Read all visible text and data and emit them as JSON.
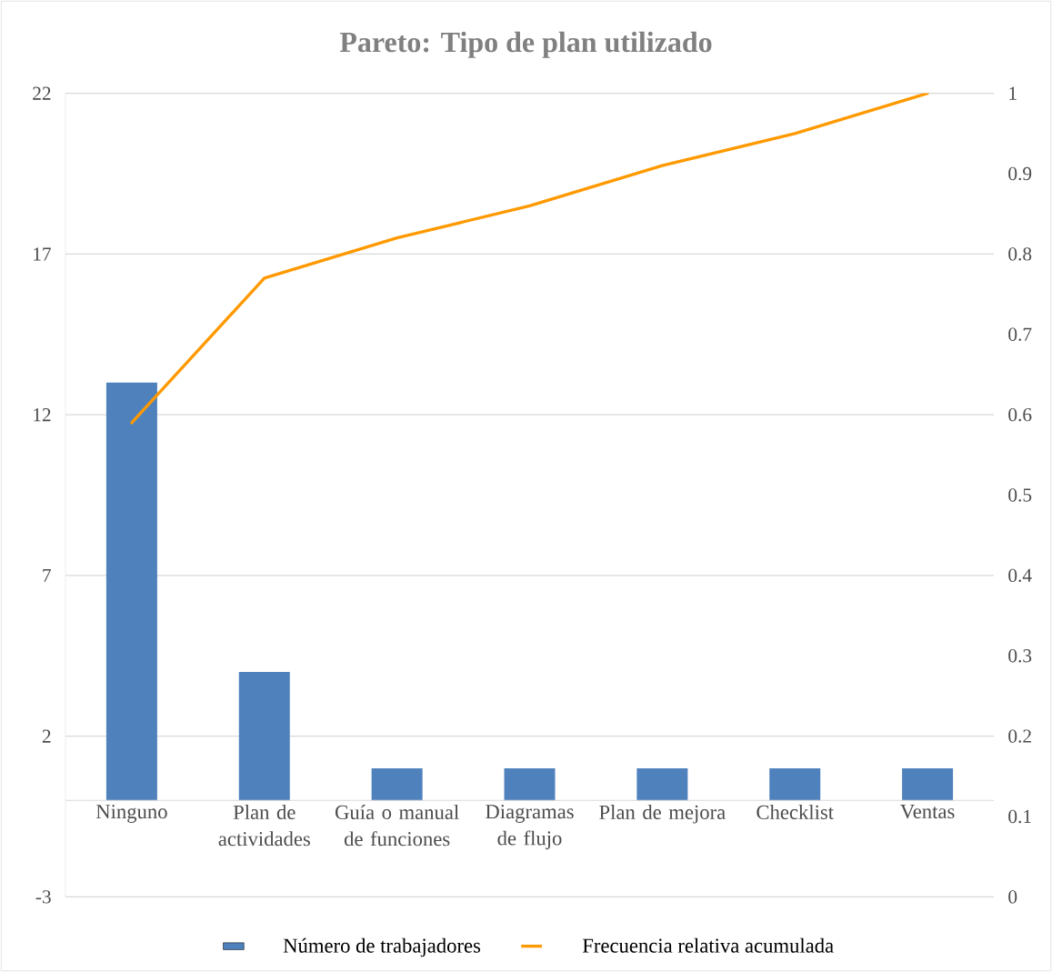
{
  "chart_data": {
    "type": "bar",
    "title": "Pareto: Tipo de plan utilizado",
    "categories": [
      "Ninguno",
      "Plan de actividades",
      "Guía o manual de funciones",
      "Diagramas de flujo",
      "Plan de mejora",
      "Checklist",
      "Ventas"
    ],
    "series": [
      {
        "name": "Número de trabajadores",
        "color": "#4f81bd",
        "values": [
          13,
          4,
          1,
          1,
          1,
          1,
          1
        ]
      },
      {
        "name": "Frecuencia relativa acumulada",
        "type": "line",
        "axis": "y2",
        "color": "#ff9900",
        "values": [
          0.59,
          0.77,
          0.82,
          0.86,
          0.91,
          0.95,
          1
        ]
      }
    ],
    "ylim": [
      -3,
      22
    ],
    "yticks": [
      -3,
      2,
      7,
      12,
      17,
      22
    ],
    "y2lim": [
      0,
      1
    ],
    "y2ticks": [
      0,
      0.1,
      0.2,
      0.3,
      0.4,
      0.5,
      0.6,
      0.7,
      0.8,
      0.9,
      1
    ],
    "grid": true,
    "legend": "bottom"
  }
}
